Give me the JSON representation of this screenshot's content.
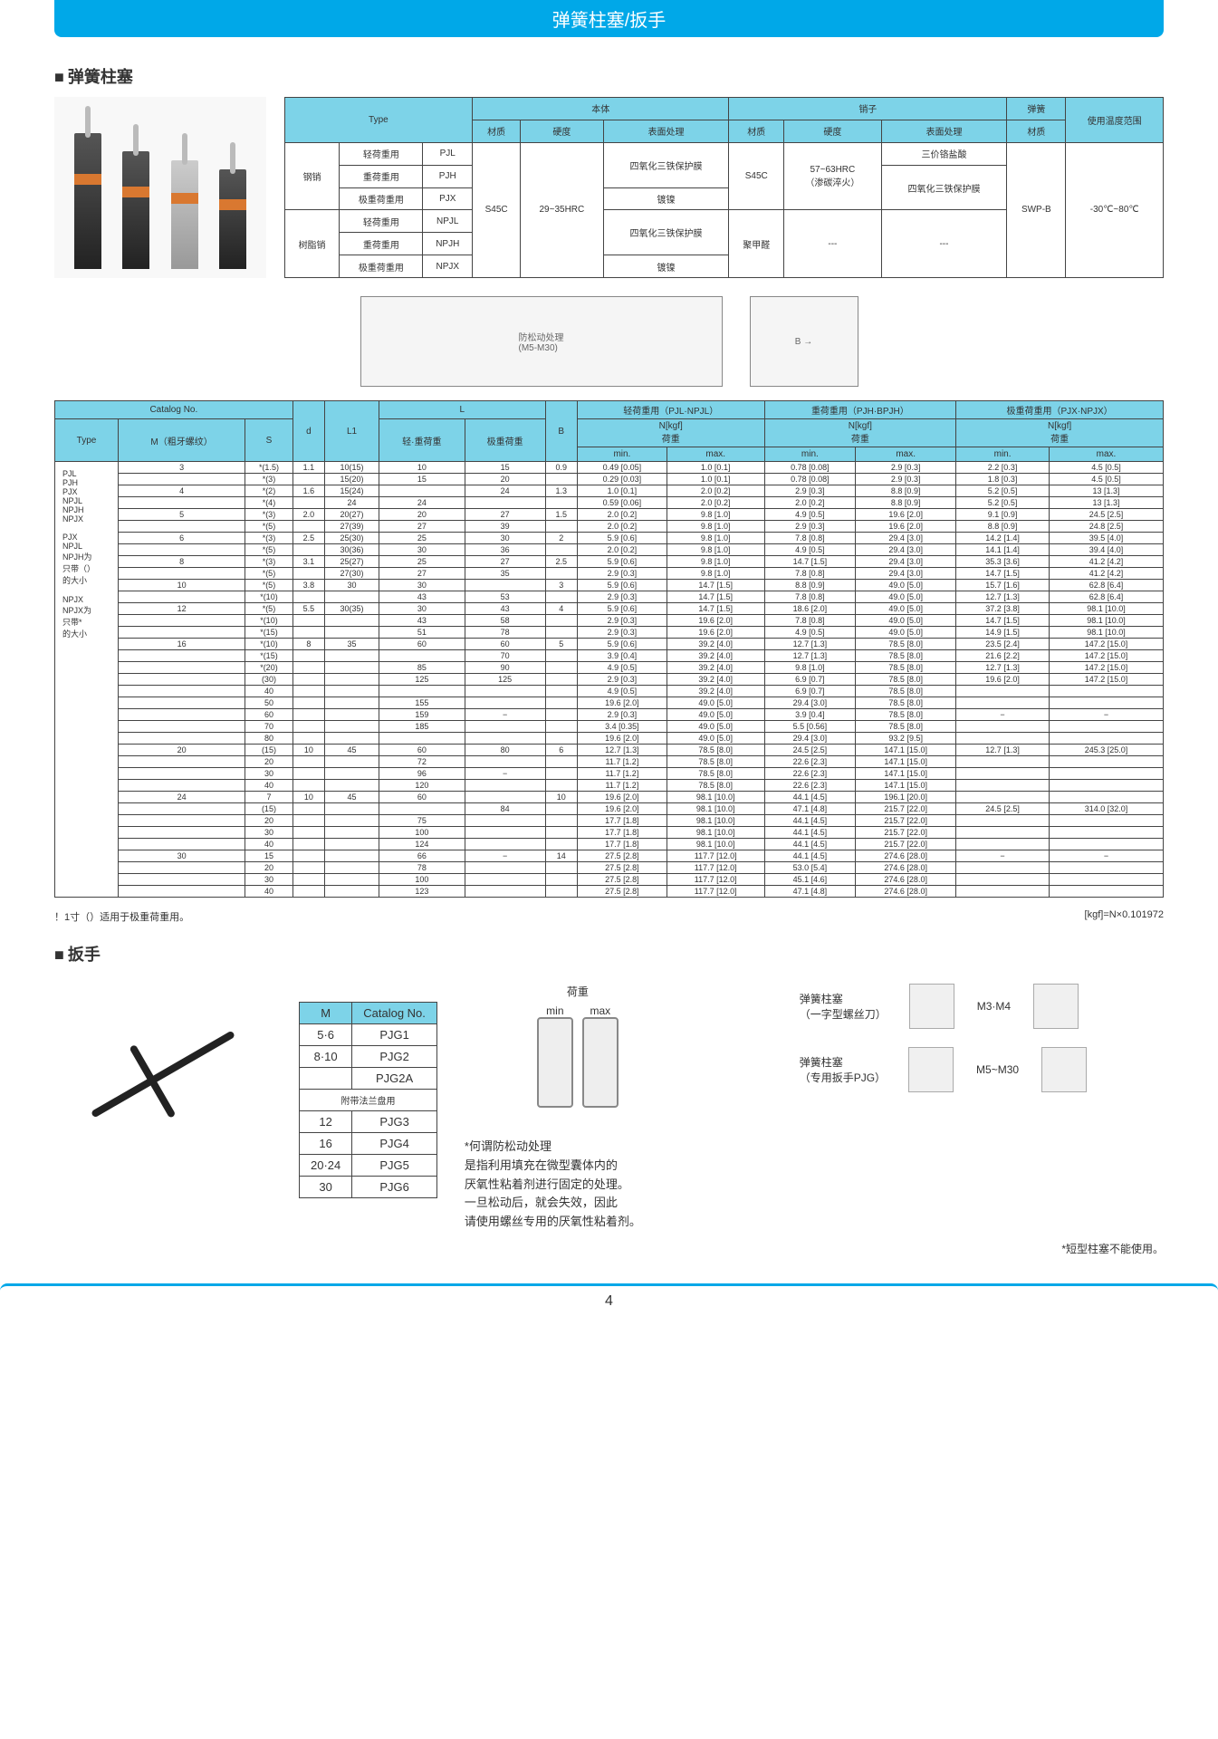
{
  "page": {
    "header": "弹簧柱塞/扳手",
    "section1_title": "弹簧柱塞",
    "section2_title": "扳手",
    "page_number": "4",
    "colors": {
      "header_bg": "#00a8e8",
      "table_header_bg": "#7dd3e8",
      "text": "#333333"
    }
  },
  "spec_table": {
    "headers": {
      "type": "Type",
      "body": "本体",
      "pin": "销子",
      "spring": "弹簧",
      "temp_range": "使用温度范围",
      "material": "材质",
      "hardness": "硬度",
      "surface": "表面处理"
    },
    "row_groups": [
      {
        "group": "钢销",
        "rows": [
          {
            "load": "轻荷重用",
            "code": "PJL"
          },
          {
            "load": "重荷重用",
            "code": "PJH"
          },
          {
            "load": "极重荷重用",
            "code": "PJX"
          }
        ]
      },
      {
        "group": "树脂销",
        "rows": [
          {
            "load": "轻荷重用",
            "code": "NPJL"
          },
          {
            "load": "重荷重用",
            "code": "NPJH"
          },
          {
            "load": "极重荷重用",
            "code": "NPJX"
          }
        ]
      }
    ],
    "body_material": "S45C",
    "body_hardness": "29~35HRC",
    "body_surface1": "四氧化三铁保护膜",
    "body_surface2": "镀镍",
    "pin_material": "S45C",
    "pin_hardness": "57~63HRC\n（渗碳淬火）",
    "pin_surface1": "三价铬盐酸",
    "pin_surface2": "四氧化三铁保护膜",
    "pin_material2": "聚甲醛",
    "spring_material": "SWP-B",
    "temp": "-30℃~80℃",
    "diagram_label": "防松动处理\n(M5-M30)"
  },
  "main_table": {
    "headers": {
      "catalog": "Catalog No.",
      "type": "Type",
      "m": "M（粗牙螺纹）",
      "s": "S",
      "d": "d",
      "l1": "L1",
      "l": "L",
      "l_sub1": "轻·重荷重",
      "l_sub2": "极重荷重",
      "b": "B",
      "light": "轻荷重用（PJL·NPJL）",
      "heavy": "重荷重用（PJH·BPJH）",
      "xheavy": "极重荷重用（PJX·NPJX）",
      "load": "N[kgf]\n荷重",
      "min": "min.",
      "max": "max."
    },
    "type_list": "PJL\nPJH\nPJX\nNPJL\nNPJH\nNPJX",
    "type_note": "PJX\nNPJL\nNPJH为\n只带（）\n的大小\n\nNPJX\nNPJX为\n只带*\n的大小",
    "rows": [
      {
        "m": "3",
        "s": "*(1.5)",
        "d": "1.1",
        "l1": "10(15)",
        "l_a": "10",
        "l_b": "15",
        "b": "0.9",
        "lt_min": "0.49 [0.05]",
        "lt_max": "1.0  [0.1]",
        "hv_min": "0.78 [0.08]",
        "hv_max": "2.9  [0.3]",
        "xh_min": "2.2  [0.3]",
        "xh_max": "4.5  [0.5]"
      },
      {
        "m": "",
        "s": "*(3)",
        "d": "",
        "l1": "15(20)",
        "l_a": "15",
        "l_b": "20",
        "b": "",
        "lt_min": "0.29 [0.03]",
        "lt_max": "1.0  [0.1]",
        "hv_min": "0.78 [0.08]",
        "hv_max": "2.9  [0.3]",
        "xh_min": "1.8  [0.3]",
        "xh_max": "4.5  [0.5]"
      },
      {
        "m": "4",
        "s": "*(2)",
        "d": "1.6",
        "l1": "15(24)",
        "l_a": "",
        "l_b": "24",
        "b": "1.3",
        "lt_min": "1.0  [0.1]",
        "lt_max": "2.0  [0.2]",
        "hv_min": "2.9  [0.3]",
        "hv_max": "8.8  [0.9]",
        "xh_min": "5.2  [0.5]",
        "xh_max": "13   [1.3]"
      },
      {
        "m": "",
        "s": "*(4)",
        "d": "",
        "l1": "24",
        "l_a": "24",
        "l_b": "",
        "b": "",
        "lt_min": "0.59 [0.06]",
        "lt_max": "2.0  [0.2]",
        "hv_min": "2.0  [0.2]",
        "hv_max": "8.8  [0.9]",
        "xh_min": "5.2  [0.5]",
        "xh_max": "13   [1.3]"
      },
      {
        "m": "5",
        "s": "*(3)",
        "d": "2.0",
        "l1": "20(27)",
        "l_a": "20",
        "l_b": "27",
        "b": "1.5",
        "lt_min": "2.0  [0.2]",
        "lt_max": "9.8  [1.0]",
        "hv_min": "4.9  [0.5]",
        "hv_max": "19.6 [2.0]",
        "xh_min": "9.1  [0.9]",
        "xh_max": "24.5 [2.5]"
      },
      {
        "m": "",
        "s": "*(5)",
        "d": "",
        "l1": "27(39)",
        "l_a": "27",
        "l_b": "39",
        "b": "",
        "lt_min": "2.0  [0.2]",
        "lt_max": "9.8  [1.0]",
        "hv_min": "2.9  [0.3]",
        "hv_max": "19.6 [2.0]",
        "xh_min": "8.8  [0.9]",
        "xh_max": "24.8 [2.5]"
      },
      {
        "m": "6",
        "s": "*(3)",
        "d": "2.5",
        "l1": "25(30)",
        "l_a": "25",
        "l_b": "30",
        "b": "2",
        "lt_min": "5.9  [0.6]",
        "lt_max": "9.8  [1.0]",
        "hv_min": "7.8  [0.8]",
        "hv_max": "29.4 [3.0]",
        "xh_min": "14.2 [1.4]",
        "xh_max": "39.5 [4.0]"
      },
      {
        "m": "",
        "s": "*(5)",
        "d": "",
        "l1": "30(36)",
        "l_a": "30",
        "l_b": "36",
        "b": "",
        "lt_min": "2.0  [0.2]",
        "lt_max": "9.8  [1.0]",
        "hv_min": "4.9  [0.5]",
        "hv_max": "29.4 [3.0]",
        "xh_min": "14.1 [1.4]",
        "xh_max": "39.4 [4.0]"
      },
      {
        "m": "8",
        "s": "*(3)",
        "d": "3.1",
        "l1": "25(27)",
        "l_a": "25",
        "l_b": "27",
        "b": "2.5",
        "lt_min": "5.9  [0.6]",
        "lt_max": "9.8  [1.0]",
        "hv_min": "14.7 [1.5]",
        "hv_max": "29.4 [3.0]",
        "xh_min": "35.3 [3.6]",
        "xh_max": "41.2 [4.2]"
      },
      {
        "m": "",
        "s": "*(5)",
        "d": "",
        "l1": "27(30)",
        "l_a": "27",
        "l_b": "35",
        "b": "",
        "lt_min": "2.9  [0.3]",
        "lt_max": "9.8  [1.0]",
        "hv_min": "7.8  [0.8]",
        "hv_max": "29.4 [3.0]",
        "xh_min": "14.7 [1.5]",
        "xh_max": "41.2 [4.2]"
      },
      {
        "m": "10",
        "s": "*(5)",
        "d": "3.8",
        "l1": "30",
        "l_a": "30",
        "l_b": "",
        "b": "3",
        "lt_min": "5.9  [0.6]",
        "lt_max": "14.7 [1.5]",
        "hv_min": "8.8  [0.9]",
        "hv_max": "49.0 [5.0]",
        "xh_min": "15.7 [1.6]",
        "xh_max": "62.8 [6.4]"
      },
      {
        "m": "",
        "s": "*(10)",
        "d": "",
        "l1": "",
        "l_a": "43",
        "l_b": "53",
        "b": "",
        "lt_min": "2.9  [0.3]",
        "lt_max": "14.7 [1.5]",
        "hv_min": "7.8  [0.8]",
        "hv_max": "49.0 [5.0]",
        "xh_min": "12.7 [1.3]",
        "xh_max": "62.8 [6.4]"
      },
      {
        "m": "12",
        "s": "*(5)",
        "d": "5.5",
        "l1": "30(35)",
        "l_a": "30",
        "l_b": "43",
        "b": "4",
        "lt_min": "5.9  [0.6]",
        "lt_max": "14.7 [1.5]",
        "hv_min": "18.6 [2.0]",
        "hv_max": "49.0 [5.0]",
        "xh_min": "37.2 [3.8]",
        "xh_max": "98.1 [10.0]"
      },
      {
        "m": "",
        "s": "*(10)",
        "d": "",
        "l1": "",
        "l_a": "43",
        "l_b": "58",
        "b": "",
        "lt_min": "2.9  [0.3]",
        "lt_max": "19.6 [2.0]",
        "hv_min": "7.8  [0.8]",
        "hv_max": "49.0 [5.0]",
        "xh_min": "14.7 [1.5]",
        "xh_max": "98.1 [10.0]"
      },
      {
        "m": "",
        "s": "*(15)",
        "d": "",
        "l1": "",
        "l_a": "51",
        "l_b": "78",
        "b": "",
        "lt_min": "2.9  [0.3]",
        "lt_max": "19.6 [2.0]",
        "hv_min": "4.9  [0.5]",
        "hv_max": "49.0 [5.0]",
        "xh_min": "14.9 [1.5]",
        "xh_max": "98.1 [10.0]"
      },
      {
        "m": "16",
        "s": "*(10)",
        "d": "8",
        "l1": "35",
        "l_a": "60",
        "l_b": "60",
        "b": "5",
        "lt_min": "5.9  [0.6]",
        "lt_max": "39.2 [4.0]",
        "hv_min": "12.7 [1.3]",
        "hv_max": "78.5 [8.0]",
        "xh_min": "23.5 [2.4]",
        "xh_max": "147.2 [15.0]"
      },
      {
        "m": "",
        "s": "*(15)",
        "d": "",
        "l1": "",
        "l_a": "",
        "l_b": "70",
        "b": "",
        "lt_min": "3.9  [0.4]",
        "lt_max": "39.2 [4.0]",
        "hv_min": "12.7 [1.3]",
        "hv_max": "78.5 [8.0]",
        "xh_min": "21.6 [2.2]",
        "xh_max": "147.2 [15.0]"
      },
      {
        "m": "",
        "s": "*(20)",
        "d": "",
        "l1": "",
        "l_a": "85",
        "l_b": "90",
        "b": "",
        "lt_min": "4.9  [0.5]",
        "lt_max": "39.2 [4.0]",
        "hv_min": "9.8  [1.0]",
        "hv_max": "78.5 [8.0]",
        "xh_min": "12.7 [1.3]",
        "xh_max": "147.2 [15.0]"
      },
      {
        "m": "",
        "s": "(30)",
        "d": "",
        "l1": "",
        "l_a": "125",
        "l_b": "125",
        "b": "",
        "lt_min": "2.9  [0.3]",
        "lt_max": "39.2 [4.0]",
        "hv_min": "6.9  [0.7]",
        "hv_max": "78.5 [8.0]",
        "xh_min": "19.6 [2.0]",
        "xh_max": "147.2 [15.0]"
      },
      {
        "m": "",
        "s": "40",
        "d": "",
        "l1": "",
        "l_a": "",
        "l_b": "",
        "b": "",
        "lt_min": "4.9  [0.5]",
        "lt_max": "39.2 [4.0]",
        "hv_min": "6.9  [0.7]",
        "hv_max": "78.5 [8.0]",
        "xh_min": "",
        "xh_max": ""
      },
      {
        "m": "",
        "s": "50",
        "d": "",
        "l1": "",
        "l_a": "155",
        "l_b": "",
        "b": "",
        "lt_min": "19.6 [2.0]",
        "lt_max": "49.0 [5.0]",
        "hv_min": "29.4 [3.0]",
        "hv_max": "78.5 [8.0]",
        "xh_min": "",
        "xh_max": ""
      },
      {
        "m": "",
        "s": "60",
        "d": "",
        "l1": "",
        "l_a": "159",
        "l_b": "−",
        "b": "",
        "lt_min": "2.9  [0.3]",
        "lt_max": "49.0 [5.0]",
        "hv_min": "3.9  [0.4]",
        "hv_max": "78.5 [8.0]",
        "xh_min": "−",
        "xh_max": "−"
      },
      {
        "m": "",
        "s": "70",
        "d": "",
        "l1": "",
        "l_a": "185",
        "l_b": "",
        "b": "",
        "lt_min": "3.4  [0.35]",
        "lt_max": "49.0 [5.0]",
        "hv_min": "5.5  [0.56]",
        "hv_max": "78.5 [8.0]",
        "xh_min": "",
        "xh_max": ""
      },
      {
        "m": "",
        "s": "80",
        "d": "",
        "l1": "",
        "l_a": "",
        "l_b": "",
        "b": "",
        "lt_min": "19.6 [2.0]",
        "lt_max": "49.0 [5.0]",
        "hv_min": "29.4 [3.0]",
        "hv_max": "93.2 [9.5]",
        "xh_min": "",
        "xh_max": ""
      },
      {
        "m": "20",
        "s": "(15)",
        "d": "10",
        "l1": "45",
        "l_a": "60",
        "l_b": "80",
        "b": "6",
        "lt_min": "12.7 [1.3]",
        "lt_max": "78.5 [8.0]",
        "hv_min": "24.5 [2.5]",
        "hv_max": "147.1 [15.0]",
        "xh_min": "12.7 [1.3]",
        "xh_max": "245.3 [25.0]"
      },
      {
        "m": "",
        "s": "20",
        "d": "",
        "l1": "",
        "l_a": "72",
        "l_b": "",
        "b": "",
        "lt_min": "11.7 [1.2]",
        "lt_max": "78.5 [8.0]",
        "hv_min": "22.6 [2.3]",
        "hv_max": "147.1 [15.0]",
        "xh_min": "",
        "xh_max": ""
      },
      {
        "m": "",
        "s": "30",
        "d": "",
        "l1": "",
        "l_a": "96",
        "l_b": "−",
        "b": "",
        "lt_min": "11.7 [1.2]",
        "lt_max": "78.5 [8.0]",
        "hv_min": "22.6 [2.3]",
        "hv_max": "147.1 [15.0]",
        "xh_min": "",
        "xh_max": ""
      },
      {
        "m": "",
        "s": "40",
        "d": "",
        "l1": "",
        "l_a": "120",
        "l_b": "",
        "b": "",
        "lt_min": "11.7 [1.2]",
        "lt_max": "78.5 [8.0]",
        "hv_min": "22.6 [2.3]",
        "hv_max": "147.1 [15.0]",
        "xh_min": "",
        "xh_max": ""
      },
      {
        "m": "24",
        "s": "7",
        "d": "10",
        "l1": "45",
        "l_a": "60",
        "l_b": "",
        "b": "10",
        "lt_min": "19.6 [2.0]",
        "lt_max": "98.1 [10.0]",
        "hv_min": "44.1 [4.5]",
        "hv_max": "196.1 [20.0]",
        "xh_min": "",
        "xh_max": ""
      },
      {
        "m": "",
        "s": "(15)",
        "d": "",
        "l1": "",
        "l_a": "",
        "l_b": "84",
        "b": "",
        "lt_min": "19.6 [2.0]",
        "lt_max": "98.1 [10.0]",
        "hv_min": "47.1 [4.8]",
        "hv_max": "215.7 [22.0]",
        "xh_min": "24.5 [2.5]",
        "xh_max": "314.0 [32.0]"
      },
      {
        "m": "",
        "s": "20",
        "d": "",
        "l1": "",
        "l_a": "75",
        "l_b": "",
        "b": "",
        "lt_min": "17.7 [1.8]",
        "lt_max": "98.1 [10.0]",
        "hv_min": "44.1 [4.5]",
        "hv_max": "215.7 [22.0]",
        "xh_min": "",
        "xh_max": ""
      },
      {
        "m": "",
        "s": "30",
        "d": "",
        "l1": "",
        "l_a": "100",
        "l_b": "",
        "b": "",
        "lt_min": "17.7 [1.8]",
        "lt_max": "98.1 [10.0]",
        "hv_min": "44.1 [4.5]",
        "hv_max": "215.7 [22.0]",
        "xh_min": "",
        "xh_max": ""
      },
      {
        "m": "",
        "s": "40",
        "d": "",
        "l1": "",
        "l_a": "124",
        "l_b": "",
        "b": "",
        "lt_min": "17.7 [1.8]",
        "lt_max": "98.1 [10.0]",
        "hv_min": "44.1 [4.5]",
        "hv_max": "215.7 [22.0]",
        "xh_min": "",
        "xh_max": ""
      },
      {
        "m": "30",
        "s": "15",
        "d": "",
        "l1": "",
        "l_a": "66",
        "l_b": "−",
        "b": "14",
        "lt_min": "27.5 [2.8]",
        "lt_max": "117.7 [12.0]",
        "hv_min": "44.1 [4.5]",
        "hv_max": "274.6 [28.0]",
        "xh_min": "−",
        "xh_max": "−"
      },
      {
        "m": "",
        "s": "20",
        "d": "",
        "l1": "",
        "l_a": "78",
        "l_b": "",
        "b": "",
        "lt_min": "27.5 [2.8]",
        "lt_max": "117.7 [12.0]",
        "hv_min": "53.0 [5.4]",
        "hv_max": "274.6 [28.0]",
        "xh_min": "",
        "xh_max": ""
      },
      {
        "m": "",
        "s": "30",
        "d": "",
        "l1": "",
        "l_a": "100",
        "l_b": "",
        "b": "",
        "lt_min": "27.5 [2.8]",
        "lt_max": "117.7 [12.0]",
        "hv_min": "45.1 [4.6]",
        "hv_max": "274.6 [28.0]",
        "xh_min": "",
        "xh_max": ""
      },
      {
        "m": "",
        "s": "40",
        "d": "",
        "l1": "",
        "l_a": "123",
        "l_b": "",
        "b": "",
        "lt_min": "27.5 [2.8]",
        "lt_max": "117.7 [12.0]",
        "hv_min": "47.1 [4.8]",
        "hv_max": "274.6 [28.0]",
        "xh_min": "",
        "xh_max": ""
      }
    ],
    "footnote_left": "！1寸（）适用于极重荷重用。",
    "footnote_right": "[kgf]=N×0.101972"
  },
  "wrench_table": {
    "headers": {
      "m": "M",
      "catalog": "Catalog No."
    },
    "rows": [
      {
        "m": "5·6",
        "cat": "PJG1"
      },
      {
        "m": "8·10",
        "cat": "PJG2"
      },
      {
        "m": "",
        "cat": "PJG2A"
      },
      {
        "m": "",
        "cat": "附带法兰盘用",
        "note": true
      },
      {
        "m": "12",
        "cat": "PJG3"
      },
      {
        "m": "16",
        "cat": "PJG4"
      },
      {
        "m": "20·24",
        "cat": "PJG5"
      },
      {
        "m": "30",
        "cat": "PJG6"
      }
    ]
  },
  "right_panel": {
    "load_label": "荷重",
    "min": "min",
    "max": "max",
    "screwdriver_label": "弹簧柱塞\n（一字型螺丝刀）",
    "screwdriver_size": "M3·M4",
    "wrench_label": "弹簧柱塞\n（专用扳手PJG）",
    "wrench_size": "M5~M30",
    "note_title": "*何谓防松动处理",
    "note_body": "是指利用填充在微型囊体内的\n厌氧性粘着剂进行固定的处理。\n一旦松动后，就会失效，因此\n请使用螺丝专用的厌氧性粘着剂。",
    "short_note": "*短型柱塞不能使用。"
  }
}
